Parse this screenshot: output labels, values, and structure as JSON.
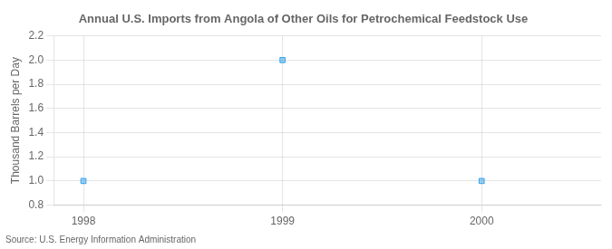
{
  "chart_data": {
    "type": "scatter",
    "title": "Annual U.S. Imports from Angola of Other Oils for Petrochemical Feedstock Use",
    "ylabel": "Thousand Barrels per Day",
    "annotations": [
      "Source: U.S. Energy Information Administration"
    ],
    "x": [
      1998,
      1999,
      2000
    ],
    "values": [
      1.0,
      2.0,
      1.0
    ],
    "marker": "square",
    "xlim": [
      1997.85,
      2000.6
    ],
    "xticks": [
      1998,
      1999,
      2000
    ],
    "ylim": [
      0.8,
      2.2
    ],
    "yticks": [
      0.8,
      {
        "value": 1.0,
        "label": "1.0"
      },
      1.2,
      1.4,
      1.6,
      1.8,
      {
        "value": 2.0,
        "label": "2.0"
      },
      2.2
    ],
    "grid": true
  }
}
